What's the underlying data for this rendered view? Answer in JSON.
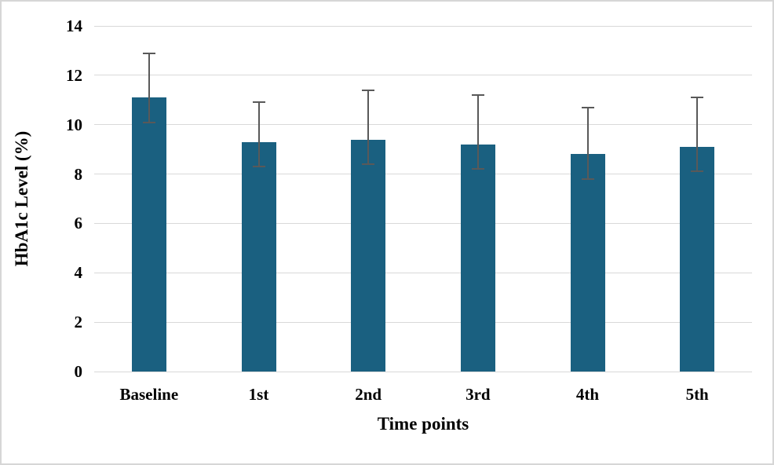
{
  "figure": {
    "background_color": "#ffffff",
    "border_color": "#d6d6d6",
    "text_color": "#000000"
  },
  "chart_data": {
    "type": "bar",
    "title": "",
    "categories": [
      "Baseline",
      "1st",
      "2nd",
      "3rd",
      "4th",
      "5th"
    ],
    "values": [
      11.1,
      9.3,
      9.4,
      9.2,
      8.8,
      9.1
    ],
    "error_upper": [
      12.9,
      10.9,
      11.4,
      11.2,
      10.7,
      11.1
    ],
    "error_lower": [
      10.1,
      8.3,
      8.4,
      8.2,
      7.8,
      8.1
    ],
    "xlabel": "Time points",
    "ylabel": "HbA1c Level (%)",
    "ylim": [
      0,
      14
    ],
    "ytick_step": 2,
    "ytick_labels": [
      "0",
      "2",
      "4",
      "6",
      "8",
      "10",
      "12",
      "14"
    ],
    "grid": true,
    "legend": "none",
    "bar_color": "#1A6080",
    "error_bar_color": "#595959",
    "gridline_color": "#d9d9d9"
  }
}
